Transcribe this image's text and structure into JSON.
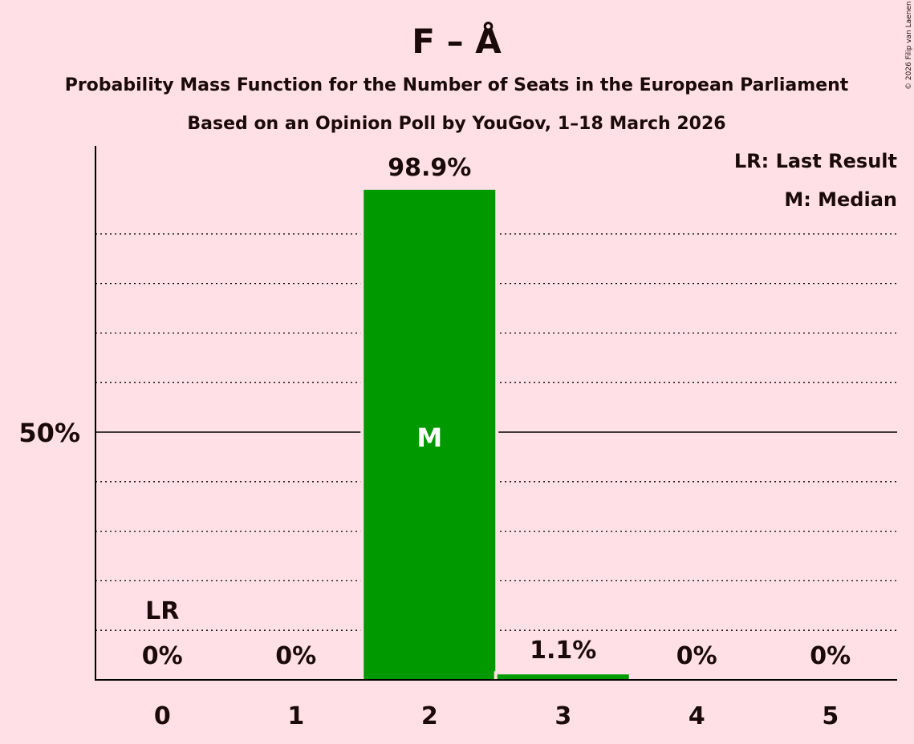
{
  "chart_data": {
    "type": "bar",
    "title": "F – Å",
    "subtitle": "Probability Mass Function for the Number of Seats in the European Parliament",
    "subtitle2": "Based on an Opinion Poll by YouGov, 1–18 March 2026",
    "categories": [
      "0",
      "1",
      "2",
      "3",
      "4",
      "5"
    ],
    "values": [
      0,
      0,
      98.9,
      1.1,
      0,
      0
    ],
    "value_labels": [
      "0%",
      "0%",
      "98.9%",
      "1.1%",
      "0%",
      "0%"
    ],
    "ylim": [
      0,
      100
    ],
    "ytick_label": "50%",
    "ytick_value": 50,
    "gridlines": [
      10,
      20,
      30,
      40,
      60,
      70,
      80,
      90
    ],
    "last_result_index": 0,
    "last_result_label": "LR",
    "median_index": 2,
    "median_label": "M",
    "legend": [
      "LR: Last Result",
      "M: Median"
    ],
    "legend_placement": "top-right",
    "bar_color": "#009900",
    "copyright": "© 2026 Filip van Laenen"
  }
}
